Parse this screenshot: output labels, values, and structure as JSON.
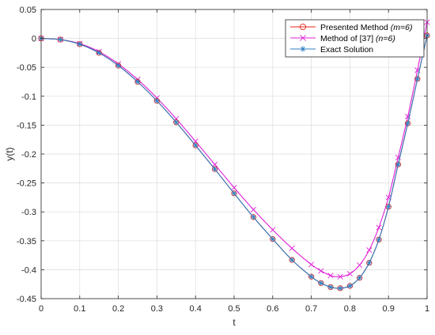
{
  "chart_data": {
    "type": "line",
    "title": "",
    "xlabel": "t",
    "ylabel": "y(t)",
    "xlim": [
      0,
      1
    ],
    "ylim": [
      -0.45,
      0.05
    ],
    "x_ticks": [
      "0",
      "0.1",
      "0.2",
      "0.3",
      "0.4",
      "0.5",
      "0.6",
      "0.7",
      "0.8",
      "0.9",
      "1"
    ],
    "y_ticks": [
      "0.05",
      "0",
      "-0.05",
      "-0.1",
      "-0.15",
      "-0.2",
      "-0.25",
      "-0.3",
      "-0.35",
      "-0.4",
      "-0.45"
    ],
    "grid": true,
    "legend_position": "top-right",
    "x": [
      0,
      0.05,
      0.1,
      0.15,
      0.2,
      0.25,
      0.3,
      0.35,
      0.4,
      0.45,
      0.5,
      0.55,
      0.6,
      0.65,
      0.7,
      0.725,
      0.75,
      0.775,
      0.8,
      0.825,
      0.85,
      0.875,
      0.9,
      0.925,
      0.95,
      0.975,
      1.0
    ],
    "series": [
      {
        "name": "Presented Method (m=6)",
        "legend_main": "Presented Method ",
        "legend_italic": "(m=6)",
        "color": "#e8231a",
        "marker": "circle",
        "values": [
          0,
          -0.002,
          -0.01,
          -0.025,
          -0.047,
          -0.075,
          -0.108,
          -0.145,
          -0.185,
          -0.226,
          -0.268,
          -0.309,
          -0.347,
          -0.383,
          -0.412,
          -0.423,
          -0.43,
          -0.432,
          -0.428,
          -0.414,
          -0.388,
          -0.348,
          -0.291,
          -0.218,
          -0.147,
          -0.07,
          0.005
        ]
      },
      {
        "name": "Method of [37] (n=6)",
        "legend_main": "Method of [37] ",
        "legend_italic": "(n=6)",
        "color": "#e020d8",
        "marker": "x",
        "values": [
          0,
          -0.002,
          -0.009,
          -0.023,
          -0.044,
          -0.071,
          -0.103,
          -0.139,
          -0.178,
          -0.218,
          -0.258,
          -0.296,
          -0.331,
          -0.363,
          -0.391,
          -0.402,
          -0.41,
          -0.412,
          -0.407,
          -0.392,
          -0.366,
          -0.327,
          -0.275,
          -0.206,
          -0.135,
          -0.055,
          0.028
        ]
      },
      {
        "name": "Exact Solution",
        "legend_main": "Exact Solution",
        "legend_italic": "",
        "color": "#2f7fc1",
        "marker": "asterisk",
        "values": [
          0,
          -0.002,
          -0.01,
          -0.025,
          -0.047,
          -0.075,
          -0.108,
          -0.145,
          -0.185,
          -0.226,
          -0.268,
          -0.309,
          -0.347,
          -0.383,
          -0.412,
          -0.423,
          -0.43,
          -0.432,
          -0.428,
          -0.414,
          -0.388,
          -0.348,
          -0.291,
          -0.218,
          -0.147,
          -0.07,
          0.005
        ]
      }
    ]
  }
}
